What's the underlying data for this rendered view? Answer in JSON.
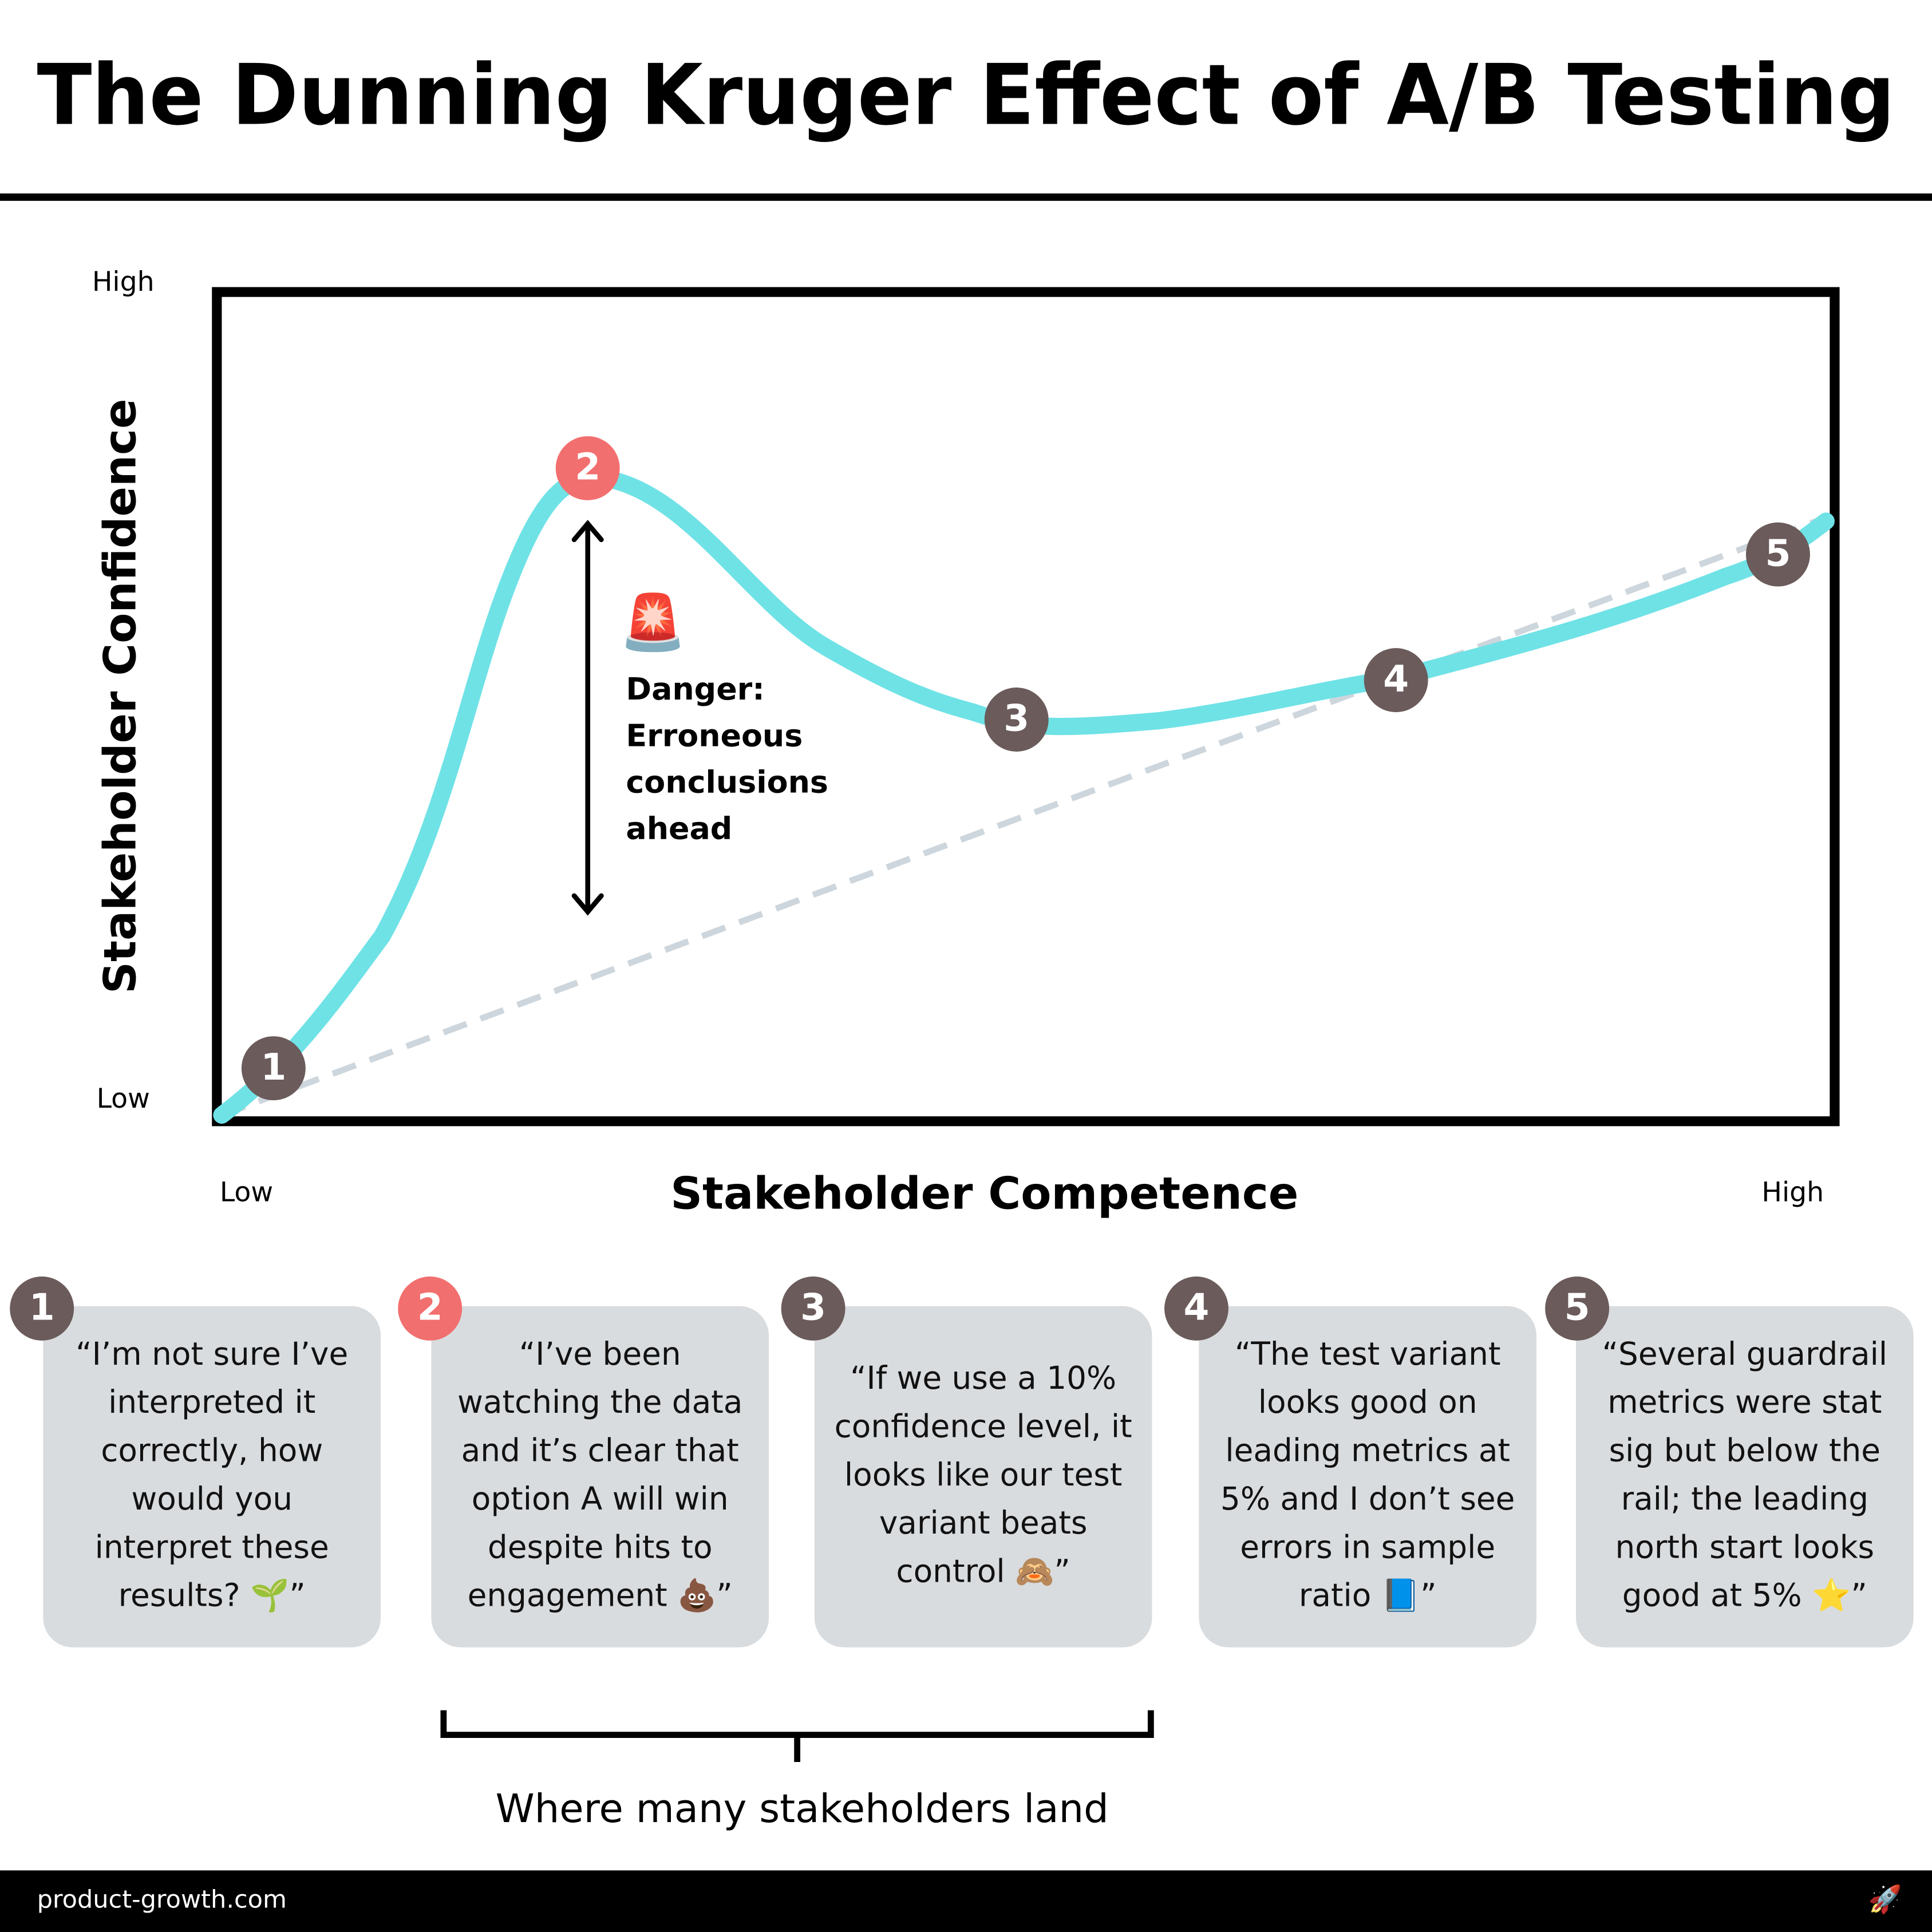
{
  "header": {
    "title": "The Dunning Kruger Effect of A/B Testing"
  },
  "chart": {
    "y_axis": {
      "label": "Stakeholder Confidence",
      "high": "High",
      "low": "Low"
    },
    "x_axis": {
      "label": "Stakeholder Competence",
      "low": "Low",
      "high": "High"
    },
    "points": [
      "1",
      "2",
      "3",
      "4",
      "5"
    ],
    "callout": {
      "icon": "🚨",
      "lines": [
        "Danger:",
        "Erroneous",
        "conclusions",
        "ahead"
      ]
    }
  },
  "cards": [
    {
      "number": "1",
      "lines": [
        "“I’m not sure I’ve",
        "interpreted it",
        "correctly, how",
        "would you",
        "interpret these",
        "results? 🌱”"
      ]
    },
    {
      "number": "2",
      "lines": [
        "“I’ve been",
        "watching the data",
        "and it’s clear that",
        "option A will win",
        "despite hits to",
        "engagement 💩”"
      ]
    },
    {
      "number": "3",
      "lines": [
        "“If we use a 10%",
        "confidence level, it",
        "looks like our test",
        "variant beats",
        "control 🙈”"
      ]
    },
    {
      "number": "4",
      "lines": [
        "“The test variant",
        "looks good on",
        "leading metrics at",
        "5% and I don’t see",
        "errors in sample",
        "ratio 📘”"
      ]
    },
    {
      "number": "5",
      "lines": [
        "“Several guardrail",
        "metrics were stat",
        "sig but below the",
        "rail; the leading",
        "north start looks",
        "good at 5% ⭐”"
      ]
    }
  ],
  "bracket": {
    "label": "Where many stakeholders land"
  },
  "footer": {
    "site": "product-growth.com",
    "icon": "🚀"
  }
}
